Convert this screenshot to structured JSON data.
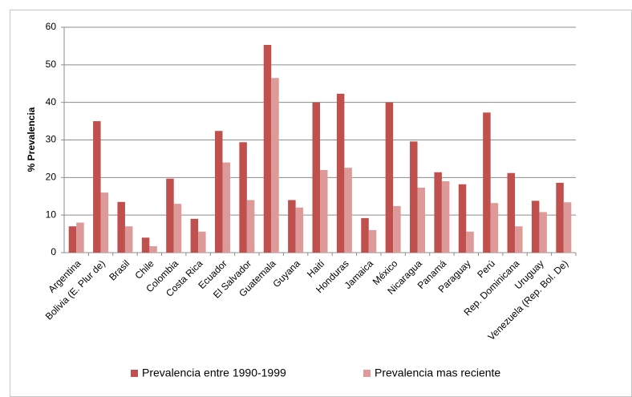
{
  "chart_data": {
    "type": "bar",
    "y_label": "% Prevalencia",
    "categories": [
      "Argentina",
      "Bolivia (E. Plur de)",
      "Brasil",
      "Chile",
      "Colombia",
      "Costa Rica",
      "Ecuador",
      "El Salvador",
      "Guatemala",
      "Guyana",
      "Haití",
      "Honduras",
      "Jamaica",
      "México",
      "Nicaragua",
      "Panamá",
      "Paraguay",
      "Perú",
      "Rep. Dominicana",
      "Uruguay",
      "Venezuela (Rep. Bol. De)"
    ],
    "series": [
      {
        "name": "Prevalencia entre 1990-1999",
        "color": "#c0504d",
        "values": [
          7,
          35,
          13.5,
          4,
          19.7,
          9,
          32.4,
          29.4,
          55.3,
          14,
          40,
          42.3,
          9.2,
          40,
          29.6,
          21.4,
          18.2,
          37.3,
          21.2,
          13.8,
          18.6
        ]
      },
      {
        "name": "Prevalencia mas reciente",
        "color": "#de9a99",
        "values": [
          8,
          16,
          7,
          1.7,
          13,
          5.6,
          24,
          14,
          46.5,
          12,
          22,
          22.6,
          6,
          12.4,
          17.3,
          19,
          5.6,
          13.2,
          7,
          10.8,
          13.4
        ]
      }
    ],
    "ylim": [
      0,
      60
    ],
    "yticks": [
      0,
      10,
      20,
      30,
      40,
      50,
      60
    ],
    "grid": true
  }
}
